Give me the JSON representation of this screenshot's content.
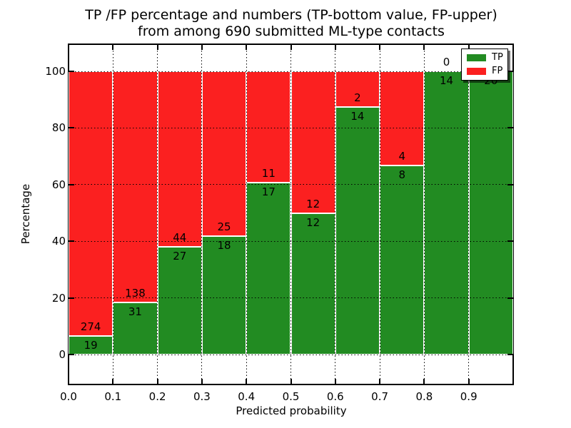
{
  "figure": {
    "title_line1": "TP /FP percentage and numbers (TP-bottom value, FP-upper)",
    "title_line2": "from among 690 submitted ML-type contacts",
    "xlabel": "Predicted probability",
    "ylabel": "Percentage"
  },
  "axes": {
    "x_tick_labels": [
      "0.0",
      "0.1",
      "0.2",
      "0.3",
      "0.4",
      "0.5",
      "0.6",
      "0.7",
      "0.8",
      "0.9"
    ],
    "y_tick_labels": [
      "0",
      "20",
      "40",
      "60",
      "80",
      "100"
    ]
  },
  "legend": {
    "position": "upper right",
    "entries": [
      {
        "label": "TP",
        "color": "#228b22"
      },
      {
        "label": "FP",
        "color": "#fb2020"
      }
    ]
  },
  "colors": {
    "tp_green": "#228b22",
    "fp_red": "#fb2020",
    "grid": "#000000",
    "background": "#ffffff"
  },
  "chart_data": {
    "type": "bar",
    "stacked": true,
    "normalized_to_percent": true,
    "title": "TP /FP percentage and numbers (TP-bottom value, FP-upper) from among 690 submitted ML-type contacts",
    "xlabel": "Predicted probability",
    "ylabel": "Percentage",
    "bin_edges": [
      0.0,
      0.1,
      0.2,
      0.3,
      0.4,
      0.5,
      0.6,
      0.7,
      0.8,
      0.9,
      1.0
    ],
    "series": [
      {
        "name": "TP",
        "color": "#228b22",
        "counts": [
          19,
          31,
          27,
          18,
          17,
          12,
          14,
          8,
          14,
          20
        ]
      },
      {
        "name": "FP",
        "color": "#fb2020",
        "counts": [
          274,
          138,
          44,
          25,
          11,
          12,
          2,
          4,
          0,
          0
        ]
      }
    ],
    "tp_percent_by_bin": [
      6.5,
      18.3,
      38.0,
      41.9,
      60.7,
      50.0,
      87.5,
      66.7,
      100.0,
      100.0
    ],
    "total_contacts": 690,
    "xlim": [
      0.0,
      1.0
    ],
    "ylim": [
      -10.6,
      109.6
    ],
    "y_ticks": [
      0,
      20,
      40,
      60,
      80,
      100
    ],
    "grid": true,
    "grid_style": "dotted",
    "legend_position": "upper right"
  }
}
